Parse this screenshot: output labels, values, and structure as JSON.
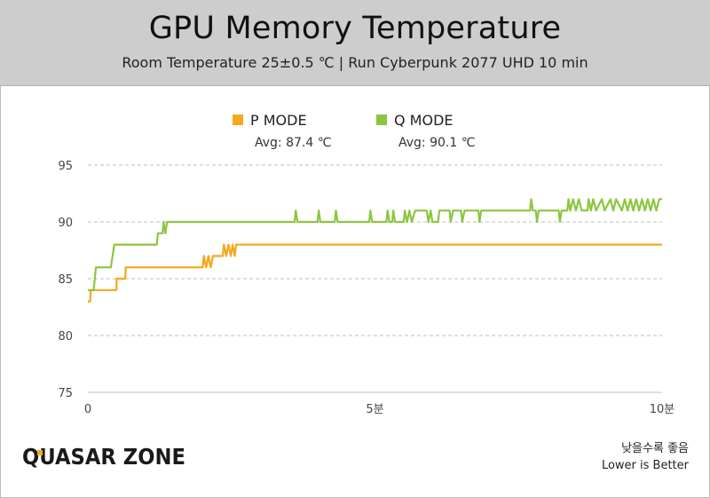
{
  "header": {
    "title": "GPU Memory Temperature",
    "subtitle": "Room Temperature 25±0.5 ℃  |  Run Cyberpunk 2077 UHD 10 min"
  },
  "footer": {
    "note_ko": "낮을수록 좋음",
    "note_en": "Lower is Better",
    "logo_text": "QUASAR ZONE"
  },
  "colors": {
    "p_mode": "#f5a81c",
    "q_mode": "#8cc63f",
    "grid": "#bfbfbf",
    "axis_text": "#444444",
    "header_bg": "#cdcdcd"
  },
  "chart_data": {
    "type": "line",
    "title": "GPU Memory Temperature",
    "xlabel": "",
    "ylabel": "",
    "xlim": [
      0,
      10
    ],
    "ylim": [
      75,
      95
    ],
    "x_ticks": [
      {
        "value": 0,
        "label": "0"
      },
      {
        "value": 5,
        "label": "5분"
      },
      {
        "value": 10,
        "label": "10분"
      }
    ],
    "y_ticks": [
      75,
      80,
      85,
      90,
      95
    ],
    "grid": true,
    "legend_position": "top-center",
    "series": [
      {
        "name": "P MODE",
        "avg_label": "Avg: 87.4 ℃",
        "color_key": "p_mode",
        "points": [
          [
            0.0,
            83
          ],
          [
            0.04,
            83
          ],
          [
            0.05,
            84
          ],
          [
            0.5,
            84
          ],
          [
            0.5,
            85
          ],
          [
            0.65,
            85
          ],
          [
            0.66,
            86
          ],
          [
            1.55,
            86
          ],
          [
            1.56,
            86
          ],
          [
            2.0,
            86
          ],
          [
            2.02,
            87
          ],
          [
            2.06,
            86
          ],
          [
            2.1,
            87
          ],
          [
            2.14,
            86
          ],
          [
            2.18,
            87
          ],
          [
            2.35,
            87
          ],
          [
            2.37,
            88
          ],
          [
            2.41,
            87
          ],
          [
            2.45,
            88
          ],
          [
            2.49,
            87
          ],
          [
            2.52,
            88
          ],
          [
            2.56,
            87
          ],
          [
            2.58,
            88
          ],
          [
            10.0,
            88
          ]
        ]
      },
      {
        "name": "Q MODE",
        "avg_label": "Avg: 90.1 ℃",
        "color_key": "q_mode",
        "points": [
          [
            0.0,
            84
          ],
          [
            0.1,
            84
          ],
          [
            0.12,
            85
          ],
          [
            0.14,
            86
          ],
          [
            0.4,
            86
          ],
          [
            0.43,
            87
          ],
          [
            0.46,
            88
          ],
          [
            1.2,
            88
          ],
          [
            1.22,
            89
          ],
          [
            1.3,
            89
          ],
          [
            1.32,
            90
          ],
          [
            1.35,
            89
          ],
          [
            1.38,
            90
          ],
          [
            3.6,
            90
          ],
          [
            3.62,
            91
          ],
          [
            3.65,
            90
          ],
          [
            4.0,
            90
          ],
          [
            4.02,
            91
          ],
          [
            4.05,
            90
          ],
          [
            4.3,
            90
          ],
          [
            4.32,
            91
          ],
          [
            4.35,
            90
          ],
          [
            4.9,
            90
          ],
          [
            4.92,
            91
          ],
          [
            4.95,
            90
          ],
          [
            5.2,
            90
          ],
          [
            5.22,
            91
          ],
          [
            5.25,
            90
          ],
          [
            5.3,
            90
          ],
          [
            5.32,
            91
          ],
          [
            5.35,
            90
          ],
          [
            5.5,
            90
          ],
          [
            5.52,
            91
          ],
          [
            5.56,
            90
          ],
          [
            5.6,
            91
          ],
          [
            5.64,
            90
          ],
          [
            5.7,
            91
          ],
          [
            5.9,
            91
          ],
          [
            5.93,
            90
          ],
          [
            5.97,
            91
          ],
          [
            6.0,
            90
          ],
          [
            6.1,
            90
          ],
          [
            6.12,
            91
          ],
          [
            6.3,
            91
          ],
          [
            6.32,
            90
          ],
          [
            6.36,
            91
          ],
          [
            6.5,
            91
          ],
          [
            6.52,
            90
          ],
          [
            6.56,
            91
          ],
          [
            6.8,
            91
          ],
          [
            6.82,
            90
          ],
          [
            6.85,
            91
          ],
          [
            7.7,
            91
          ],
          [
            7.72,
            92
          ],
          [
            7.75,
            91
          ],
          [
            7.8,
            91
          ],
          [
            7.82,
            90
          ],
          [
            7.85,
            91
          ],
          [
            8.2,
            91
          ],
          [
            8.22,
            90
          ],
          [
            8.25,
            91
          ],
          [
            8.35,
            91
          ],
          [
            8.37,
            92
          ],
          [
            8.4,
            91
          ],
          [
            8.45,
            92
          ],
          [
            8.5,
            91
          ],
          [
            8.55,
            92
          ],
          [
            8.6,
            91
          ],
          [
            8.7,
            91
          ],
          [
            8.72,
            92
          ],
          [
            8.76,
            91
          ],
          [
            8.8,
            92
          ],
          [
            8.85,
            91
          ],
          [
            8.95,
            92
          ],
          [
            9.0,
            91
          ],
          [
            9.1,
            92
          ],
          [
            9.15,
            91
          ],
          [
            9.2,
            92
          ],
          [
            9.3,
            91
          ],
          [
            9.35,
            92
          ],
          [
            9.4,
            91
          ],
          [
            9.45,
            92
          ],
          [
            9.5,
            91
          ],
          [
            9.55,
            92
          ],
          [
            9.6,
            91
          ],
          [
            9.65,
            92
          ],
          [
            9.7,
            91
          ],
          [
            9.75,
            92
          ],
          [
            9.8,
            91
          ],
          [
            9.85,
            92
          ],
          [
            9.9,
            91
          ],
          [
            9.95,
            92
          ],
          [
            10.0,
            92
          ]
        ]
      }
    ]
  }
}
